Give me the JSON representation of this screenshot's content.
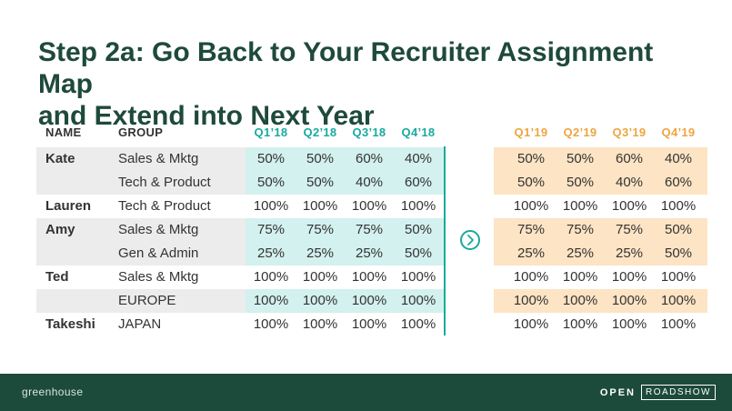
{
  "title": {
    "line1": "Step 2a: Go Back to Your Recruiter Assignment Map",
    "line2": "and Extend into Next Year"
  },
  "table": {
    "headers": {
      "name": "NAME",
      "group": "GROUP",
      "q2018": [
        "Q1’18",
        "Q2’18",
        "Q3’18",
        "Q4’18"
      ],
      "q2019": [
        "Q1’19",
        "Q2’19",
        "Q3’19",
        "Q4’19"
      ]
    },
    "rows": [
      {
        "name": "Kate",
        "group": "Sales & Mktg",
        "y2018": [
          "50%",
          "50%",
          "60%",
          "40%"
        ],
        "y2019": [
          "50%",
          "50%",
          "60%",
          "40%"
        ]
      },
      {
        "name": "",
        "group": "Tech & Product",
        "y2018": [
          "50%",
          "50%",
          "40%",
          "60%"
        ],
        "y2019": [
          "50%",
          "50%",
          "40%",
          "60%"
        ]
      },
      {
        "name": "Lauren",
        "group": "Tech & Product",
        "y2018": [
          "100%",
          "100%",
          "100%",
          "100%"
        ],
        "y2019": [
          "100%",
          "100%",
          "100%",
          "100%"
        ]
      },
      {
        "name": "Amy",
        "group": "Sales & Mktg",
        "y2018": [
          "75%",
          "75%",
          "75%",
          "50%"
        ],
        "y2019": [
          "75%",
          "75%",
          "75%",
          "50%"
        ]
      },
      {
        "name": "",
        "group": "Gen & Admin",
        "y2018": [
          "25%",
          "25%",
          "25%",
          "50%"
        ],
        "y2019": [
          "25%",
          "25%",
          "25%",
          "50%"
        ]
      },
      {
        "name": "Ted",
        "group": "Sales & Mktg",
        "y2018": [
          "100%",
          "100%",
          "100%",
          "100%"
        ],
        "y2019": [
          "100%",
          "100%",
          "100%",
          "100%"
        ]
      },
      {
        "name": "",
        "group": "EUROPE",
        "y2018": [
          "100%",
          "100%",
          "100%",
          "100%"
        ],
        "y2019": [
          "100%",
          "100%",
          "100%",
          "100%"
        ]
      },
      {
        "name": "Takeshi",
        "group": "JAPAN",
        "y2018": [
          "100%",
          "100%",
          "100%",
          "100%"
        ],
        "y2019": [
          "100%",
          "100%",
          "100%",
          "100%"
        ]
      }
    ]
  },
  "arrow_icon": "chevron-right-circle-icon",
  "footer": {
    "logo": "greenhouse",
    "brand_open": "OPEN",
    "brand_roadshow": "ROADSHOW"
  },
  "colors": {
    "title": "#1e4a3a",
    "teal": "#1aa9a0",
    "orange": "#eda542",
    "teal_band": "#d3f1ee",
    "orange_band": "#fde4c4",
    "gray_band": "#ececec",
    "footer": "#1c4a3b"
  }
}
